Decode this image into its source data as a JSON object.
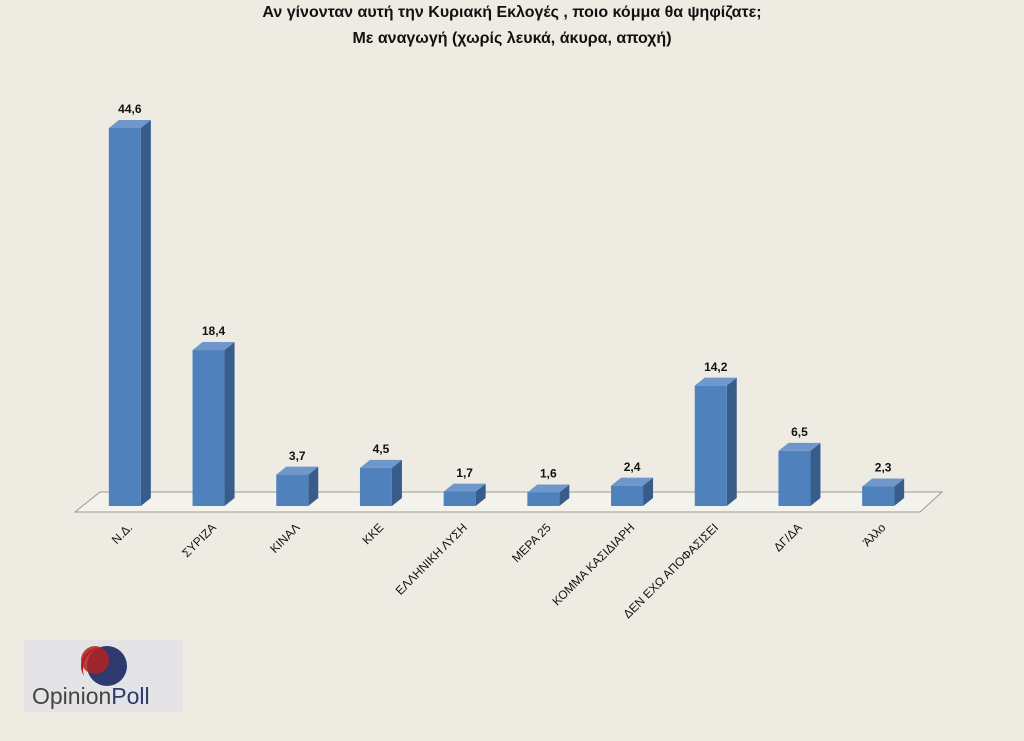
{
  "chart_data": {
    "type": "bar3d",
    "title": "Αν γίνονταν αυτή την Κυριακή Εκλογές , ποιο κόμμα θα ψηφίζατε;",
    "subtitle": "Με αναγωγή (χωρίς λευκά, άκυρα, αποχή)",
    "categories": [
      "Ν.Δ.",
      "ΣΥΡΙΖΑ",
      "ΚΙΝΑΛ",
      "ΚΚΕ",
      "ΕΛΛΗΝΙΚΗ ΛΥΣΗ",
      "ΜΕΡΑ 25",
      "ΚΟΜΜΑ ΚΑΣΙΔΙΑΡΗ",
      "ΔΕΝ ΕΧΩ ΑΠΟΦΑΣΙΣΕΙ",
      "ΔΓ/ΔΑ",
      "Άλλο"
    ],
    "values": [
      44.6,
      18.4,
      3.7,
      4.5,
      1.7,
      1.6,
      2.4,
      14.2,
      6.5,
      2.3
    ],
    "value_labels": [
      "44,6",
      "18,4",
      "3,7",
      "4,5",
      "1,7",
      "1,6",
      "2,4",
      "14,2",
      "6,5",
      "2,3"
    ],
    "color": "#4f81bd"
  },
  "logo": {
    "part1": "Opinion",
    "part2": "Poll"
  }
}
